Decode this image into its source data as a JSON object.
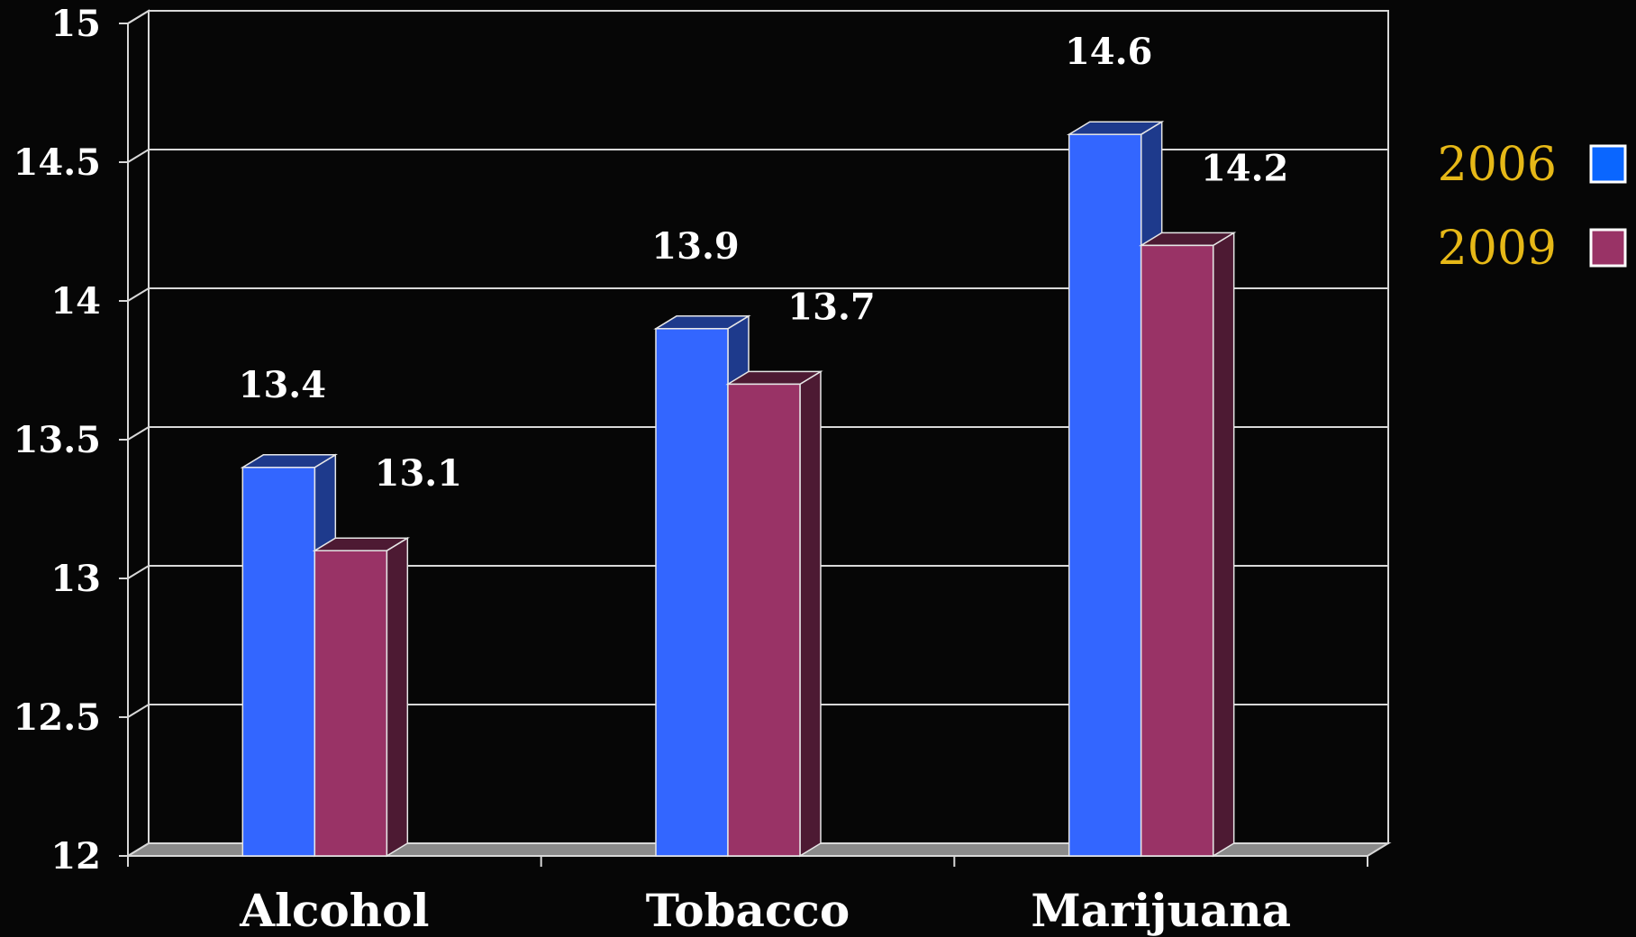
{
  "chart_data": {
    "type": "bar",
    "categories": [
      "Alcohol",
      "Tobacco",
      "Marijuana"
    ],
    "series": [
      {
        "name": "2006",
        "values": [
          13.4,
          13.9,
          14.6
        ],
        "color": "#3366ff",
        "side_color": "#1e3a8c",
        "label_text": [
          "13.4",
          "13.9",
          "14.6"
        ]
      },
      {
        "name": "2009",
        "values": [
          13.1,
          13.7,
          14.2
        ],
        "color": "#993366",
        "side_color": "#4d1a33",
        "label_text": [
          "13.1",
          "13.7",
          "14.2"
        ]
      }
    ],
    "ylim": [
      12,
      15
    ],
    "y_ticks": [
      12,
      12.5,
      13,
      13.5,
      14,
      14.5,
      15
    ],
    "y_tick_labels": [
      "12",
      "12.5",
      "13",
      "13.5",
      "14",
      "14.5",
      "15"
    ],
    "grid": true,
    "legend": "right",
    "legend_colors": [
      "#0a66ff",
      "#993366"
    ],
    "title": "",
    "xlabel": "",
    "ylabel": ""
  }
}
